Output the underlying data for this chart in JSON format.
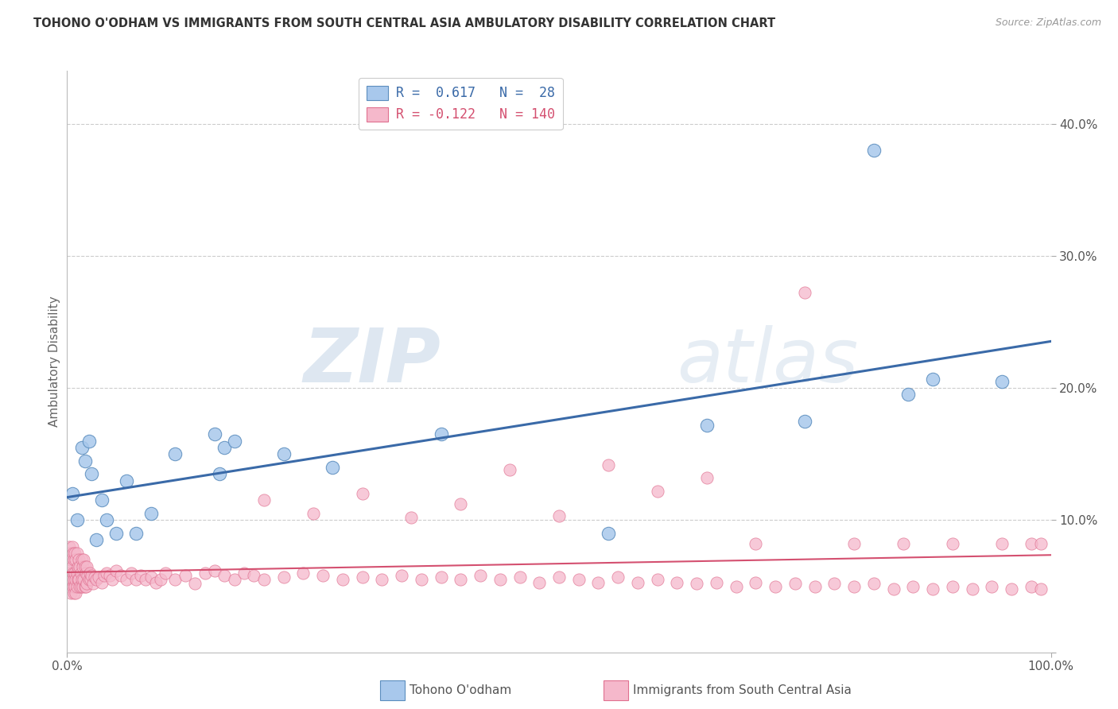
{
  "title": "TOHONO O'ODHAM VS IMMIGRANTS FROM SOUTH CENTRAL ASIA AMBULATORY DISABILITY CORRELATION CHART",
  "source": "Source: ZipAtlas.com",
  "ylabel": "Ambulatory Disability",
  "blue_R": 0.617,
  "blue_N": 28,
  "pink_R": -0.122,
  "pink_N": 140,
  "blue_color": "#A8C8EC",
  "blue_edge_color": "#5B8DBE",
  "blue_line_color": "#3A6AA8",
  "pink_color": "#F5B8CB",
  "pink_edge_color": "#E07090",
  "pink_line_color": "#D45070",
  "legend_label_blue": "Tohono O'odham",
  "legend_label_pink": "Immigrants from South Central Asia",
  "watermark_zip": "ZIP",
  "watermark_atlas": "atlas",
  "background_color": "#FFFFFF",
  "xlim": [
    0.0,
    1.0
  ],
  "ylim": [
    0.0,
    0.44
  ],
  "yticks": [
    0.0,
    0.1,
    0.2,
    0.3,
    0.4
  ],
  "ytick_labels": [
    "",
    "10.0%",
    "20.0%",
    "30.0%",
    "40.0%"
  ],
  "blue_x": [
    0.005,
    0.01,
    0.015,
    0.018,
    0.022,
    0.025,
    0.03,
    0.035,
    0.04,
    0.05,
    0.06,
    0.07,
    0.085,
    0.11,
    0.15,
    0.155,
    0.16,
    0.17,
    0.22,
    0.27,
    0.38,
    0.55,
    0.65,
    0.75,
    0.82,
    0.855,
    0.88,
    0.95
  ],
  "blue_y": [
    0.12,
    0.1,
    0.155,
    0.145,
    0.16,
    0.135,
    0.085,
    0.115,
    0.1,
    0.09,
    0.13,
    0.09,
    0.105,
    0.15,
    0.165,
    0.135,
    0.155,
    0.16,
    0.15,
    0.14,
    0.165,
    0.09,
    0.172,
    0.175,
    0.38,
    0.195,
    0.207,
    0.205
  ],
  "pink_x": [
    0.002,
    0.002,
    0.002,
    0.003,
    0.003,
    0.003,
    0.004,
    0.004,
    0.004,
    0.005,
    0.005,
    0.005,
    0.006,
    0.006,
    0.006,
    0.007,
    0.007,
    0.007,
    0.008,
    0.008,
    0.008,
    0.009,
    0.009,
    0.009,
    0.01,
    0.01,
    0.01,
    0.011,
    0.011,
    0.012,
    0.012,
    0.013,
    0.013,
    0.014,
    0.014,
    0.015,
    0.015,
    0.016,
    0.016,
    0.017,
    0.017,
    0.018,
    0.018,
    0.019,
    0.019,
    0.02,
    0.02,
    0.021,
    0.022,
    0.023,
    0.024,
    0.025,
    0.026,
    0.028,
    0.03,
    0.032,
    0.035,
    0.038,
    0.04,
    0.043,
    0.046,
    0.05,
    0.055,
    0.06,
    0.065,
    0.07,
    0.075,
    0.08,
    0.085,
    0.09,
    0.095,
    0.1,
    0.11,
    0.12,
    0.13,
    0.14,
    0.15,
    0.16,
    0.17,
    0.18,
    0.19,
    0.2,
    0.22,
    0.24,
    0.26,
    0.28,
    0.3,
    0.32,
    0.34,
    0.36,
    0.38,
    0.4,
    0.42,
    0.44,
    0.46,
    0.48,
    0.5,
    0.52,
    0.54,
    0.56,
    0.58,
    0.6,
    0.62,
    0.64,
    0.66,
    0.68,
    0.7,
    0.72,
    0.74,
    0.76,
    0.78,
    0.8,
    0.82,
    0.84,
    0.86,
    0.88,
    0.9,
    0.92,
    0.94,
    0.96,
    0.98,
    0.99,
    0.2,
    0.25,
    0.3,
    0.35,
    0.4,
    0.45,
    0.5,
    0.55,
    0.6,
    0.65,
    0.7,
    0.75,
    0.8,
    0.85,
    0.9,
    0.95,
    0.98,
    0.99
  ],
  "pink_y": [
    0.08,
    0.065,
    0.055,
    0.075,
    0.06,
    0.05,
    0.07,
    0.055,
    0.045,
    0.08,
    0.065,
    0.055,
    0.075,
    0.06,
    0.05,
    0.07,
    0.055,
    0.045,
    0.075,
    0.06,
    0.05,
    0.07,
    0.055,
    0.045,
    0.075,
    0.06,
    0.05,
    0.065,
    0.055,
    0.07,
    0.055,
    0.065,
    0.05,
    0.06,
    0.05,
    0.07,
    0.055,
    0.065,
    0.05,
    0.07,
    0.055,
    0.065,
    0.05,
    0.06,
    0.05,
    0.065,
    0.052,
    0.058,
    0.055,
    0.06,
    0.055,
    0.058,
    0.052,
    0.057,
    0.055,
    0.057,
    0.053,
    0.058,
    0.06,
    0.058,
    0.055,
    0.062,
    0.058,
    0.055,
    0.06,
    0.055,
    0.058,
    0.055,
    0.057,
    0.053,
    0.055,
    0.06,
    0.055,
    0.058,
    0.052,
    0.06,
    0.062,
    0.058,
    0.055,
    0.06,
    0.058,
    0.055,
    0.057,
    0.06,
    0.058,
    0.055,
    0.057,
    0.055,
    0.058,
    0.055,
    0.057,
    0.055,
    0.058,
    0.055,
    0.057,
    0.053,
    0.057,
    0.055,
    0.053,
    0.057,
    0.053,
    0.055,
    0.053,
    0.052,
    0.053,
    0.05,
    0.053,
    0.05,
    0.052,
    0.05,
    0.052,
    0.05,
    0.052,
    0.048,
    0.05,
    0.048,
    0.05,
    0.048,
    0.05,
    0.048,
    0.05,
    0.048,
    0.115,
    0.105,
    0.12,
    0.102,
    0.112,
    0.138,
    0.103,
    0.142,
    0.122,
    0.132,
    0.082,
    0.272,
    0.082,
    0.082,
    0.082,
    0.082,
    0.082,
    0.082
  ]
}
